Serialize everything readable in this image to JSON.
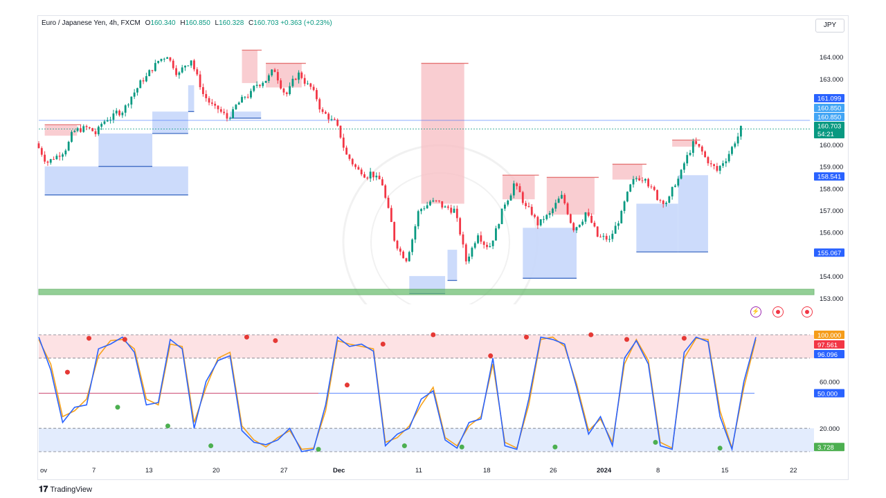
{
  "header": {
    "symbol": "Euro / Japanese Yen, 4h, FXCM",
    "open_label": "O",
    "open": "160.340",
    "high_label": "H",
    "high": "160.850",
    "low_label": "L",
    "low": "160.328",
    "close_label": "C",
    "close": "160.703",
    "change": "+0.363 (+0.23%)",
    "currency": "JPY"
  },
  "branding": {
    "logo_text": "TradingView"
  },
  "colors": {
    "up": "#089981",
    "down": "#f23645",
    "k_line": "#2962ff",
    "d_line": "#f7a21b",
    "supply_fill": "#f7c1c6",
    "demand_fill": "#c7d7fb",
    "support_zone": "#66bb6a"
  },
  "chart_data": [
    {
      "type": "candlestick",
      "title": "",
      "ylim": [
        152.9,
        165.2
      ],
      "y_ticks": [
        "164.000",
        "163.000",
        "161.099",
        "160.850",
        "160.703",
        "160.000",
        "159.000",
        "158.541",
        "158.000",
        "157.000",
        "156.000",
        "155.067",
        "154.000",
        "153.000"
      ],
      "price_badges": [
        {
          "value": "161.099",
          "kind": "level-blue"
        },
        {
          "value": "160.850",
          "kind": "level-cyan"
        },
        {
          "value": "160.850",
          "kind": "level-cyan"
        },
        {
          "value": "160.703",
          "kind": "last",
          "countdown": "54:21"
        },
        {
          "value": "158.541",
          "kind": "level-blue"
        },
        {
          "value": "155.067",
          "kind": "level-blue"
        }
      ],
      "x_ticks": [
        "ov",
        "7",
        "13",
        "20",
        "27",
        "Dec",
        "11",
        "18",
        "26",
        "2024",
        "8",
        "15",
        "22"
      ],
      "close_path": [
        160.05,
        159.2,
        159.6,
        160.4,
        160.7,
        160.5,
        161.2,
        161.5,
        162.2,
        163.0,
        163.6,
        164.1,
        163.2,
        163.9,
        162.3,
        161.6,
        161.2,
        161.9,
        162.3,
        162.9,
        163.4,
        162.3,
        163.2,
        162.6,
        161.4,
        161.0,
        159.5,
        158.8,
        158.7,
        158.2,
        155.7,
        154.8,
        156.9,
        157.4,
        157.2,
        157.0,
        154.7,
        156.0,
        155.4,
        156.9,
        158.2,
        157.1,
        156.4,
        156.8,
        157.6,
        156.2,
        156.9,
        155.8,
        155.6,
        156.8,
        158.3,
        158.6,
        157.6,
        157.5,
        158.7,
        160.0,
        159.4,
        158.8,
        159.6,
        160.7
      ],
      "supply_zones": [
        {
          "x0": 0.5,
          "x1": 3.2,
          "y0": 160.4,
          "y1": 160.9
        },
        {
          "x0": 17.0,
          "x1": 18.3,
          "y0": 162.8,
          "y1": 164.3
        },
        {
          "x0": 19.0,
          "x1": 22.0,
          "y0": 162.6,
          "y1": 163.7
        },
        {
          "x0": 32.0,
          "x1": 35.6,
          "y0": 157.3,
          "y1": 163.7
        },
        {
          "x0": 38.8,
          "x1": 41.5,
          "y0": 157.5,
          "y1": 158.6
        },
        {
          "x0": 42.5,
          "x1": 46.5,
          "y0": 156.8,
          "y1": 158.5
        },
        {
          "x0": 48.0,
          "x1": 50.5,
          "y0": 158.4,
          "y1": 159.1
        },
        {
          "x0": 53.0,
          "x1": 55.0,
          "y0": 159.9,
          "y1": 160.2
        }
      ],
      "demand_zones": [
        {
          "x0": 0.5,
          "x1": 12.5,
          "y0": 157.7,
          "y1": 159.0
        },
        {
          "x0": 5.0,
          "x1": 9.5,
          "y0": 159.0,
          "y1": 160.5
        },
        {
          "x0": 9.5,
          "x1": 12.5,
          "y0": 160.5,
          "y1": 161.5
        },
        {
          "x0": 12.5,
          "x1": 13.0,
          "y0": 161.5,
          "y1": 162.7
        },
        {
          "x0": 16.0,
          "x1": 18.6,
          "y0": 161.2,
          "y1": 161.5
        },
        {
          "x0": 31.0,
          "x1": 34.0,
          "y0": 153.2,
          "y1": 154.0
        },
        {
          "x0": 34.2,
          "x1": 35.0,
          "y0": 153.8,
          "y1": 155.2
        },
        {
          "x0": 40.5,
          "x1": 45.0,
          "y0": 153.9,
          "y1": 156.2
        },
        {
          "x0": 50.0,
          "x1": 53.5,
          "y0": 155.1,
          "y1": 157.3
        },
        {
          "x0": 53.5,
          "x1": 56.0,
          "y0": 155.1,
          "y1": 158.6
        }
      ],
      "support_zone": {
        "y0": 153.15,
        "y1": 153.4
      },
      "horizontal_lines": [
        161.099,
        160.703
      ]
    },
    {
      "type": "line",
      "title": "",
      "ylim": [
        0,
        100
      ],
      "y_ticks": [
        "100.000",
        "97.561",
        "96.096",
        "60.000",
        "50.000",
        "20.000",
        "3.728"
      ],
      "overbought_band": [
        80,
        100
      ],
      "oversold_band": [
        0,
        20
      ],
      "midline": 50,
      "series": [
        {
          "values": [
            98,
            70,
            25,
            38,
            40,
            88,
            92,
            98,
            85,
            40,
            42,
            96,
            88,
            20,
            60,
            78,
            82,
            18,
            8,
            6,
            10,
            20,
            0,
            2,
            40,
            98,
            90,
            92,
            86,
            5,
            15,
            20,
            45,
            52,
            10,
            3,
            25,
            28,
            80,
            5,
            2,
            45,
            98,
            96,
            92,
            55,
            15,
            30,
            5,
            80,
            95,
            75,
            5,
            2,
            85,
            98,
            94,
            30,
            2,
            60,
            98
          ]
        },
        {
          "values": [
            96,
            75,
            30,
            35,
            45,
            82,
            95,
            96,
            88,
            45,
            40,
            92,
            90,
            25,
            55,
            80,
            85,
            22,
            10,
            4,
            12,
            18,
            2,
            3,
            35,
            95,
            92,
            90,
            88,
            8,
            12,
            22,
            40,
            55,
            12,
            5,
            22,
            30,
            75,
            8,
            3,
            40,
            96,
            98,
            90,
            58,
            18,
            28,
            8,
            75,
            96,
            78,
            8,
            3,
            80,
            97,
            96,
            35,
            3,
            55,
            96
          ]
        }
      ],
      "markers": [
        {
          "x": 0.18,
          "y": 22,
          "kind": "bull"
        },
        {
          "x": 0.04,
          "y": 68,
          "kind": "bear"
        },
        {
          "x": 0.07,
          "y": 97,
          "kind": "bear"
        },
        {
          "x": 0.11,
          "y": 38,
          "kind": "bull"
        },
        {
          "x": 0.12,
          "y": 96,
          "kind": "bear"
        },
        {
          "x": 0.24,
          "y": 5,
          "kind": "bull"
        },
        {
          "x": 0.29,
          "y": 98,
          "kind": "bear"
        },
        {
          "x": 0.33,
          "y": 95,
          "kind": "bear"
        },
        {
          "x": 0.39,
          "y": 2,
          "kind": "bull"
        },
        {
          "x": 0.43,
          "y": 57,
          "kind": "bear"
        },
        {
          "x": 0.48,
          "y": 92,
          "kind": "bear"
        },
        {
          "x": 0.51,
          "y": 5,
          "kind": "bull"
        },
        {
          "x": 0.55,
          "y": 100,
          "kind": "bear"
        },
        {
          "x": 0.59,
          "y": 4,
          "kind": "bull"
        },
        {
          "x": 0.63,
          "y": 82,
          "kind": "bear"
        },
        {
          "x": 0.68,
          "y": 98,
          "kind": "bear"
        },
        {
          "x": 0.72,
          "y": 4,
          "kind": "bull"
        },
        {
          "x": 0.77,
          "y": 100,
          "kind": "bear"
        },
        {
          "x": 0.82,
          "y": 96,
          "kind": "bear"
        },
        {
          "x": 0.86,
          "y": 8,
          "kind": "bull"
        },
        {
          "x": 0.9,
          "y": 97,
          "kind": "bear"
        },
        {
          "x": 0.95,
          "y": 3,
          "kind": "bull"
        }
      ]
    }
  ]
}
